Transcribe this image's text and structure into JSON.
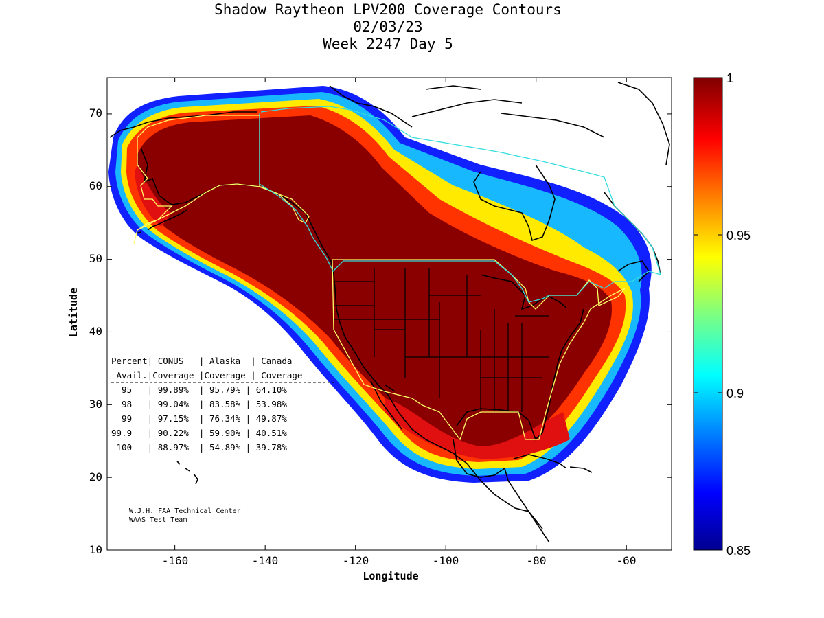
{
  "title": {
    "line1": "Shadow Raytheon LPV200 Coverage Contours",
    "line2": "02/03/23",
    "line3": "Week 2247 Day 5"
  },
  "axes": {
    "xlabel": "Longitude",
    "ylabel": "Latitude",
    "xlim": [
      -175,
      -50
    ],
    "ylim": [
      10,
      75
    ],
    "xticks": [
      -160,
      -140,
      -120,
      -100,
      -80,
      -60
    ],
    "yticks": [
      10,
      20,
      30,
      40,
      50,
      60,
      70
    ],
    "xtick_labels": [
      "-160",
      "-140",
      "-120",
      "-100",
      "-80",
      "-60"
    ],
    "ytick_labels": [
      "10",
      "20",
      "30",
      "40",
      "50",
      "60",
      "70"
    ]
  },
  "colorbar": {
    "range": [
      0.85,
      1
    ],
    "ticks": [
      0.85,
      0.9,
      0.95,
      1
    ],
    "tick_labels": [
      "0.85",
      "0.9",
      "0.95",
      "1"
    ],
    "colormap": "jet"
  },
  "table": {
    "header1": "Percent| CONUS   | Alaska  | Canada",
    "header2": " Avail.|Coverage |Coverage | Coverage",
    "rows": [
      "  95   | 99.89%  | 95.79% | 64.10%",
      "  98   | 99.04%  | 83.58% | 53.98%",
      "  99   | 97.15%  | 76.34% | 49.87%",
      "99.9   | 90.22%  | 59.90% | 40.51%",
      " 100   | 88.97%  | 54.89% | 39.78%"
    ]
  },
  "credit": {
    "line1": "W.J.H. FAA Technical Center",
    "line2": "WAAS Test Team"
  },
  "colors": {
    "conus_outline": "#ffff66",
    "canada_outline": "#33dddd",
    "coastline": "#000000"
  }
}
